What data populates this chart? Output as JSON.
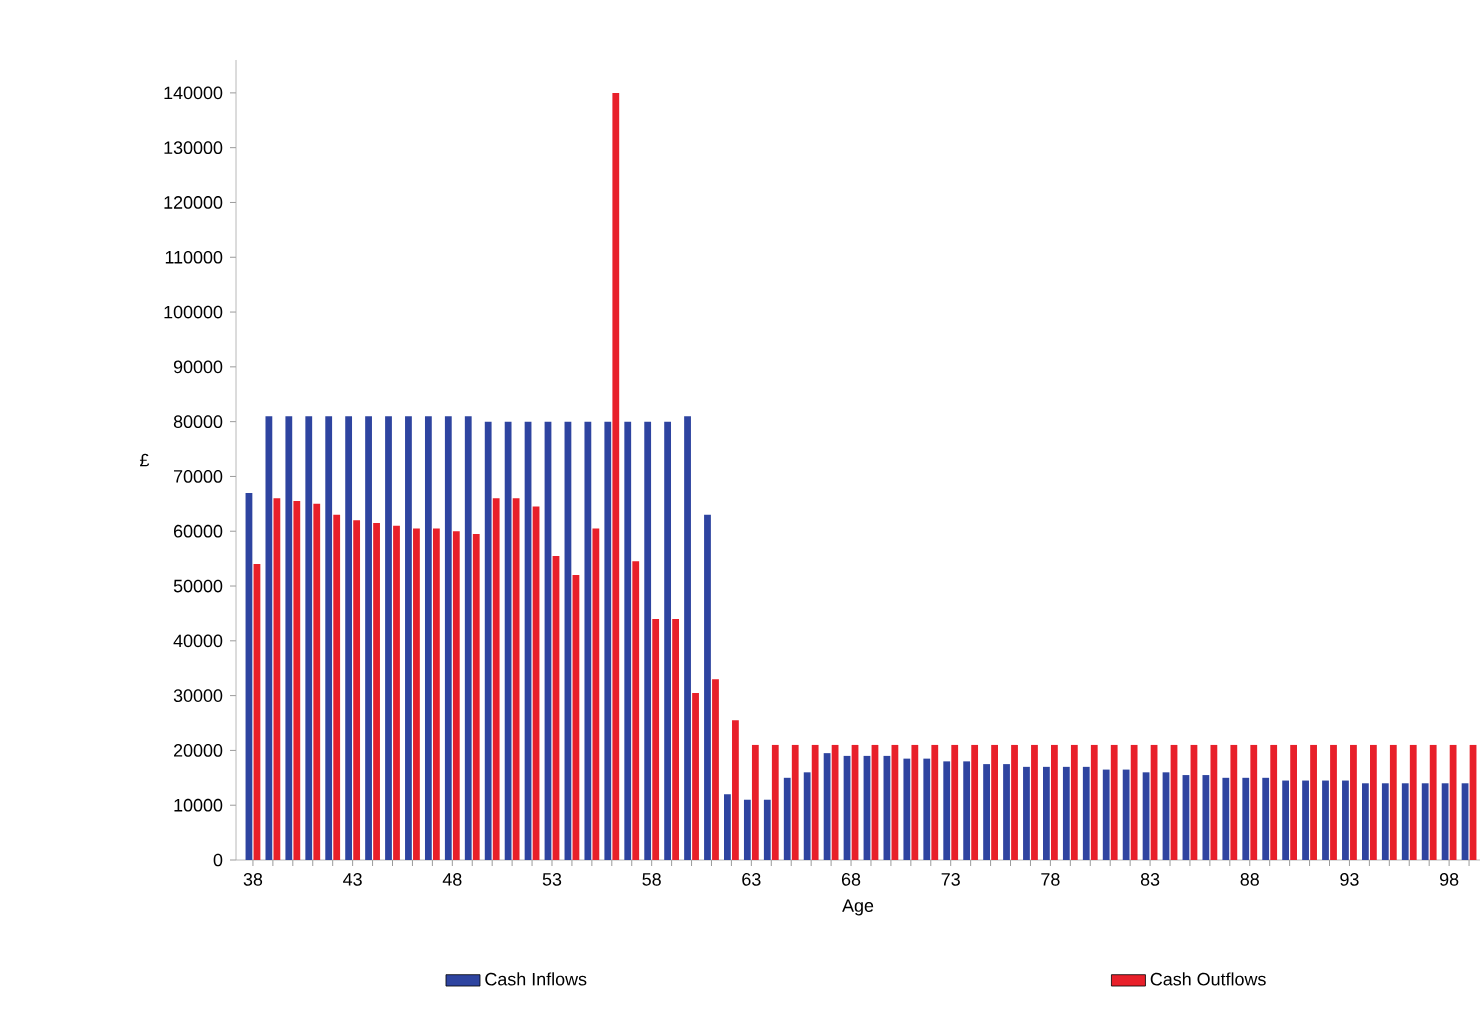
{
  "chart_data": {
    "type": "bar",
    "xlabel": "Age",
    "ylabel": "£",
    "categories": [
      "38",
      null,
      null,
      null,
      null,
      "43",
      null,
      null,
      null,
      null,
      "48",
      null,
      null,
      null,
      null,
      "53",
      null,
      null,
      null,
      null,
      "58",
      null,
      null,
      null,
      null,
      "63",
      null,
      null,
      null,
      null,
      "68",
      null,
      null,
      null,
      null,
      "73",
      null,
      null,
      null,
      null,
      "78",
      null,
      null,
      null,
      null,
      "83",
      null,
      null,
      null,
      null,
      "88",
      null,
      null,
      null,
      null,
      "93",
      null,
      null,
      null,
      null,
      "98",
      null
    ],
    "series": [
      {
        "name": "Cash Inflows",
        "color": "#2e44a0",
        "values": [
          67000,
          81000,
          81000,
          81000,
          81000,
          81000,
          81000,
          81000,
          81000,
          81000,
          81000,
          81000,
          80000,
          80000,
          80000,
          80000,
          80000,
          80000,
          80000,
          80000,
          80000,
          80000,
          81000,
          63000,
          12000,
          11000,
          11000,
          15000,
          16000,
          19500,
          19000,
          19000,
          19000,
          18500,
          18500,
          18000,
          18000,
          17500,
          17500,
          17000,
          17000,
          17000,
          17000,
          16500,
          16500,
          16000,
          16000,
          15500,
          15500,
          15000,
          15000,
          15000,
          14500,
          14500,
          14500,
          14500,
          14000,
          14000,
          14000,
          14000,
          14000,
          14000
        ]
      },
      {
        "name": "Cash Outflows",
        "color": "#e8202a",
        "values": [
          54000,
          66000,
          65500,
          65000,
          63000,
          62000,
          61500,
          61000,
          60500,
          60500,
          60000,
          59500,
          66000,
          66000,
          64500,
          55500,
          52000,
          60500,
          140000,
          54500,
          44000,
          44000,
          30500,
          33000,
          25500,
          21000,
          21000,
          21000,
          21000,
          21000,
          21000,
          21000,
          21000,
          21000,
          21000,
          21000,
          21000,
          21000,
          21000,
          21000,
          21000,
          21000,
          21000,
          21000,
          21000,
          21000,
          21000,
          21000,
          21000,
          21000,
          21000,
          21000,
          21000,
          21000,
          21000,
          21000,
          21000,
          21000,
          21000,
          21000,
          21000,
          21000
        ]
      }
    ],
    "ylim": [
      0,
      146000
    ],
    "yticks": [
      0,
      10000,
      20000,
      30000,
      40000,
      50000,
      60000,
      70000,
      80000,
      90000,
      100000,
      110000,
      120000,
      130000,
      140000
    ],
    "grid": false,
    "legend": "bottom"
  }
}
